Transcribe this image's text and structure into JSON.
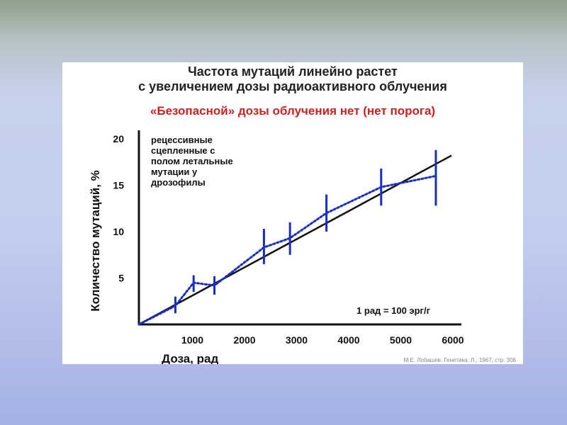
{
  "chart_data": {
    "type": "line",
    "title_lines": [
      "Частота мутаций линейно растет",
      "с увеличением дозы радиоактивного облучения"
    ],
    "subtitle": "«Безопасной» дозы облучения нет (нет порога)",
    "xlabel": "Доза, рад",
    "ylabel": "Количество мутаций, %",
    "xlim": [
      0,
      6000
    ],
    "ylim": [
      0,
      20
    ],
    "x_ticks": [
      "1000",
      "2000",
      "3000",
      "4000",
      "5000",
      "6000"
    ],
    "x_tick_values": [
      1000,
      2000,
      3000,
      4000,
      5000,
      6000
    ],
    "y_ticks": [
      "5",
      "10",
      "15",
      "20"
    ],
    "y_tick_values": [
      5,
      10,
      15,
      20
    ],
    "annotation_lines": [
      "рецессивные",
      "сцепленные  с",
      "полом летальные",
      "мутации у",
      "дрозофилы"
    ],
    "unit_note": "1 рад = 100 эрг/г",
    "source_note": "М.Е. Лобашев. Генетика. Л., 1967, стр. 306",
    "series": [
      {
        "kind": "fit",
        "style": "solid",
        "color": "#111111",
        "x": [
          0,
          6000
        ],
        "y": [
          0,
          18.2
        ]
      },
      {
        "kind": "observed",
        "style": "dotted",
        "color": "#1a2fc0",
        "x": [
          0,
          700,
          1050,
          1450,
          2400,
          2900,
          3600,
          4650,
          5700
        ],
        "y": [
          0,
          2.0,
          4.5,
          4.2,
          8.3,
          9.3,
          12.0,
          14.8,
          16.0
        ],
        "err_low": [
          null,
          1.2,
          3.5,
          3.2,
          6.5,
          7.5,
          10.0,
          12.8,
          12.8
        ],
        "err_high": [
          null,
          3.0,
          5.3,
          5.2,
          10.3,
          11.0,
          14.0,
          16.8,
          18.8
        ]
      }
    ],
    "grid": false,
    "colors": {
      "fit_line": "#111111",
      "data_series": "#1a2fc0",
      "subtitle": "#d02020"
    }
  }
}
